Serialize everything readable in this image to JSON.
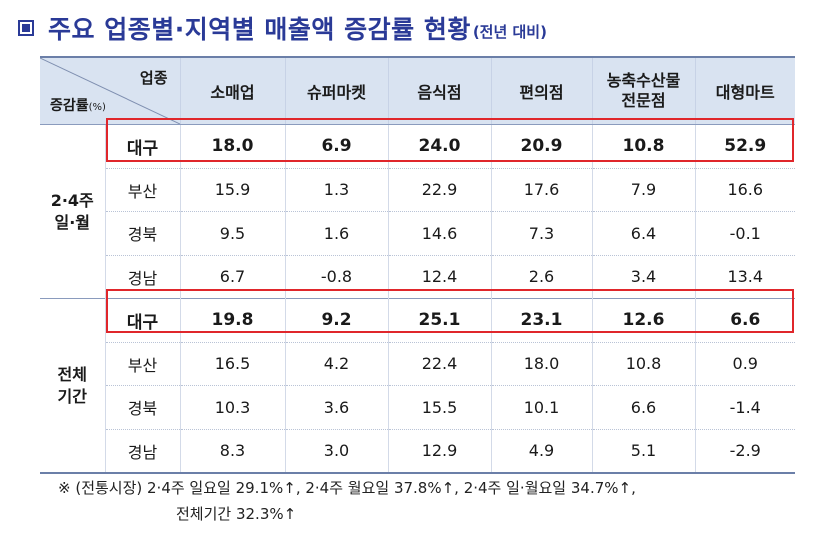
{
  "title": {
    "main": "주요 업종별·지역별 매출액 증감률 현황",
    "sub": "(전년 대비)"
  },
  "table": {
    "corner_top": "업종",
    "corner_bottom": "증감률",
    "corner_unit": "(%)",
    "columns": [
      "소매업",
      "슈퍼마켓",
      "음식점",
      "편의점",
      "농축수산물\n전문점",
      "대형마트"
    ],
    "groups": [
      {
        "label": "2·4주\n일·월",
        "rows": [
          {
            "region": "대구",
            "values": [
              "18.0",
              "6.9",
              "24.0",
              "20.9",
              "10.8",
              "52.9"
            ]
          },
          {
            "region": "부산",
            "values": [
              "15.9",
              "1.3",
              "22.9",
              "17.6",
              "7.9",
              "16.6"
            ]
          },
          {
            "region": "경북",
            "values": [
              "9.5",
              "1.6",
              "14.6",
              "7.3",
              "6.4",
              "-0.1"
            ]
          },
          {
            "region": "경남",
            "values": [
              "6.7",
              "-0.8",
              "12.4",
              "2.6",
              "3.4",
              "13.4"
            ]
          }
        ]
      },
      {
        "label": "전체\n기간",
        "rows": [
          {
            "region": "대구",
            "values": [
              "19.8",
              "9.2",
              "25.1",
              "23.1",
              "12.6",
              "6.6"
            ]
          },
          {
            "region": "부산",
            "values": [
              "16.5",
              "4.2",
              "22.4",
              "18.0",
              "10.8",
              "0.9"
            ]
          },
          {
            "region": "경북",
            "values": [
              "10.3",
              "3.6",
              "15.5",
              "10.1",
              "6.6",
              "-1.4"
            ]
          },
          {
            "region": "경남",
            "values": [
              "8.3",
              "3.0",
              "12.9",
              "4.9",
              "5.1",
              "-2.9"
            ]
          }
        ]
      }
    ]
  },
  "note": {
    "line1": "※ (전통시장) 2·4주 일요일 29.1%↑, 2·4주 월요일 37.8%↑, 2·4주 일·월요일 34.7%↑,",
    "line2": "전체기간 32.3%↑"
  },
  "colors": {
    "title": "#2a3a97",
    "header_bg": "#d9e3f1",
    "highlight_border": "#e0262b"
  }
}
